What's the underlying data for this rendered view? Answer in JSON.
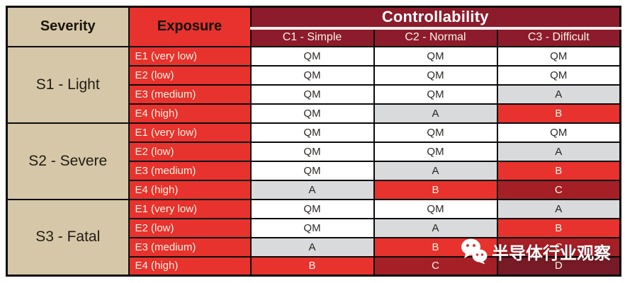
{
  "chart_data": {
    "type": "table",
    "headers": {
      "severity": "Severity",
      "exposure": "Exposure",
      "controllability": "Controllability",
      "controllability_levels": [
        "C1 - Simple",
        "C2 - Normal",
        "C3 - Difficult"
      ]
    },
    "severity_groups": [
      {
        "severity": "S1 - Light",
        "rows": [
          {
            "exposure": "E1 (very low)",
            "values": [
              "QM",
              "QM",
              "QM"
            ]
          },
          {
            "exposure": "E2 (low)",
            "values": [
              "QM",
              "QM",
              "QM"
            ]
          },
          {
            "exposure": "E3 (medium)",
            "values": [
              "QM",
              "QM",
              "A"
            ]
          },
          {
            "exposure": "E4 (high)",
            "values": [
              "QM",
              "A",
              "B"
            ]
          }
        ]
      },
      {
        "severity": "S2 - Severe",
        "rows": [
          {
            "exposure": "E1 (very low)",
            "values": [
              "QM",
              "QM",
              "QM"
            ]
          },
          {
            "exposure": "E2 (low)",
            "values": [
              "QM",
              "QM",
              "A"
            ]
          },
          {
            "exposure": "E3 (medium)",
            "values": [
              "QM",
              "A",
              "B"
            ]
          },
          {
            "exposure": "E4 (high)",
            "values": [
              "A",
              "B",
              "C"
            ]
          }
        ]
      },
      {
        "severity": "S3 - Fatal",
        "rows": [
          {
            "exposure": "E1 (very low)",
            "values": [
              "QM",
              "QM",
              "A"
            ]
          },
          {
            "exposure": "E2 (low)",
            "values": [
              "QM",
              "A",
              "B"
            ]
          },
          {
            "exposure": "E3 (medium)",
            "values": [
              "A",
              "B",
              "C"
            ]
          },
          {
            "exposure": "E4 (high)",
            "values": [
              "B",
              "C",
              "D"
            ]
          }
        ]
      }
    ],
    "value_styles": {
      "QM": {
        "bg": "#ffffff",
        "fg": "#2d2a28"
      },
      "A": {
        "bg": "#d8dadb",
        "fg": "#26231f"
      },
      "B": {
        "bg": "#e7322d",
        "fg": "#fbf2e4"
      },
      "C": {
        "bg": "#a51f27",
        "fg": "#fbf2e4"
      },
      "D": {
        "bg": "#761b27",
        "fg": "#fbf2e4"
      }
    },
    "layout": {
      "severity_bg": "#d5c7a7",
      "exposure_bg": "#e7322d",
      "controllability_bg": "#8c1b2b",
      "border_color": "#0b0b0b",
      "grid": "on"
    }
  },
  "watermark": {
    "icon": "wechat-icon",
    "text": "半导体行业观察",
    "color": "#ffffff"
  }
}
